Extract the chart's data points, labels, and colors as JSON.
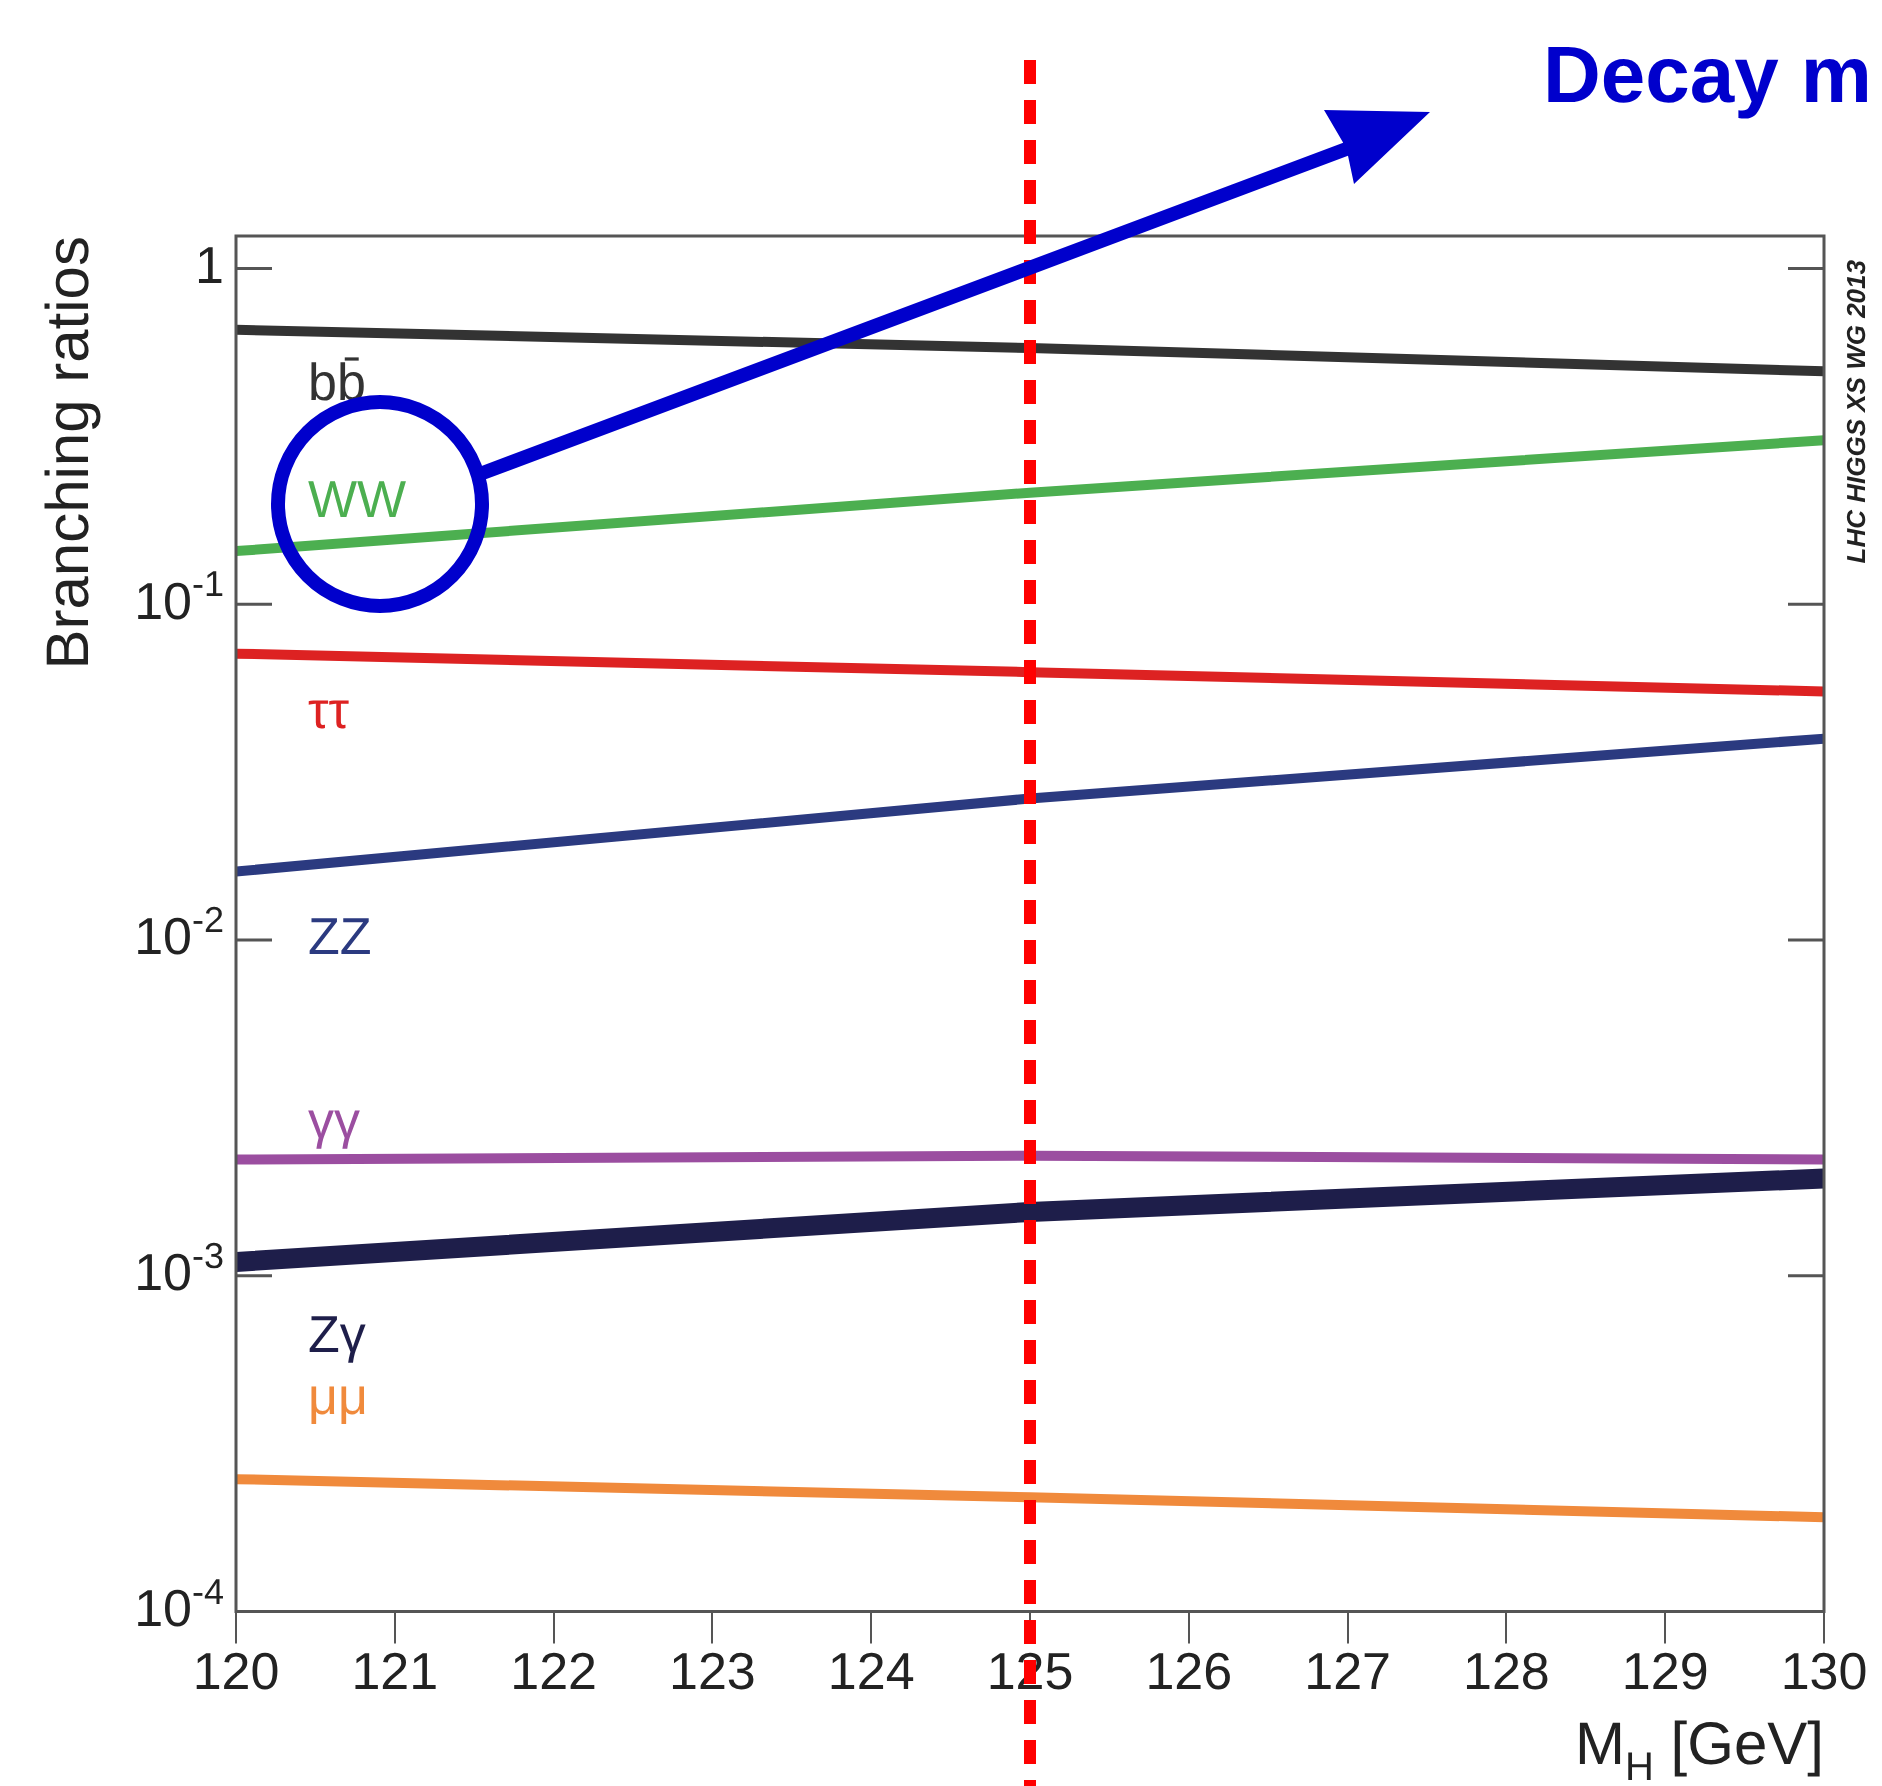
{
  "chart_data": {
    "type": "line",
    "x": [
      120,
      125,
      130
    ],
    "series": [
      {
        "name": "bb̄",
        "color": "#333333",
        "values": [
          0.657,
          0.58,
          0.494
        ]
      },
      {
        "name": "WW",
        "color": "#4caf50",
        "values": [
          0.144,
          0.215,
          0.308
        ]
      },
      {
        "name": "ττ",
        "color": "#dd2222",
        "values": [
          0.0713,
          0.0628,
          0.055
        ]
      },
      {
        "name": "ZZ",
        "color": "#2b3a80",
        "values": [
          0.016,
          0.0264,
          0.0398
        ]
      },
      {
        "name": "γγ",
        "color": "#9b4ea0",
        "values": [
          0.00222,
          0.00228,
          0.00222
        ]
      },
      {
        "name": "Zγ",
        "color": "#1e1e4a",
        "values": [
          0.0011,
          0.00155,
          0.00195
        ]
      },
      {
        "name": "μμ",
        "color": "#f08a3c",
        "values": [
          0.000248,
          0.000219,
          0.000191
        ]
      }
    ],
    "xlabel": "M$_{H}$ [GeV]",
    "ylabel": "Branching ratios",
    "xlim": [
      120,
      130
    ],
    "xticks": [
      120,
      121,
      122,
      123,
      124,
      125,
      126,
      127,
      128,
      129,
      130
    ],
    "ylim": [
      0.0001,
      1.25
    ],
    "yticks": [
      {
        "value": 0.0001,
        "label": "10$^{-4}$"
      },
      {
        "value": 0.001,
        "label": "10$^{-3}$"
      },
      {
        "value": 0.01,
        "label": "10$^{-2}$"
      },
      {
        "value": 0.1,
        "label": "10$^{-1}$"
      },
      1
    ],
    "log": "y",
    "grid": false,
    "legend": false,
    "marker": "none",
    "line_style": "solid",
    "ref_lines": [
      {
        "axis": "x",
        "value": 125,
        "color": "#ff0000",
        "line_style": "dashed"
      }
    ],
    "annotations": [
      "Decay m",
      "LHC HIGGS XS WG 2013"
    ]
  }
}
